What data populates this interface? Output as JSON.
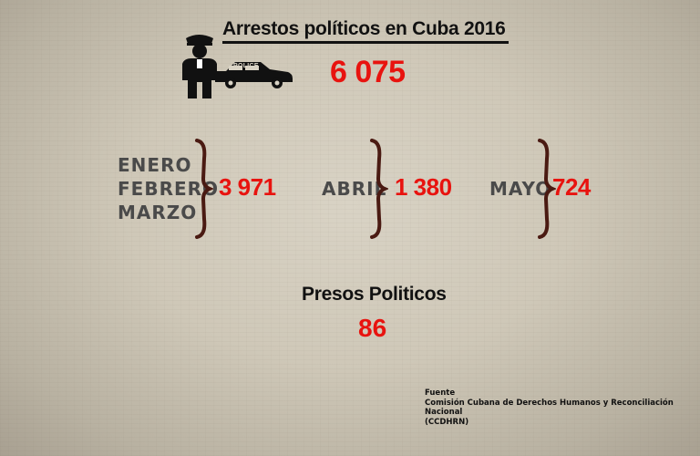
{
  "title": "Arrestos políticos en Cuba 2016",
  "total": "6 075",
  "police_label": "POLICE",
  "periods": [
    {
      "months": [
        "ENERO",
        "FEBRERO",
        "MARZO"
      ],
      "value": "3 971"
    },
    {
      "months": [
        "ABRIL"
      ],
      "value": "1 380"
    },
    {
      "months": [
        "MAYO"
      ],
      "value": "724"
    }
  ],
  "presos": {
    "label": "Presos Politicos",
    "value": "86"
  },
  "source": {
    "label": "Fuente",
    "org": "Comisión Cubana de Derechos Humanos y Reconciliación Nacional",
    "acronym": "(CCDHRN)"
  },
  "colors": {
    "accent": "#e8130f",
    "brace": "#4a1a12",
    "text": "#111111",
    "months": "#4a4a4a"
  },
  "icons": [
    "police-officer-icon",
    "police-car-icon"
  ]
}
